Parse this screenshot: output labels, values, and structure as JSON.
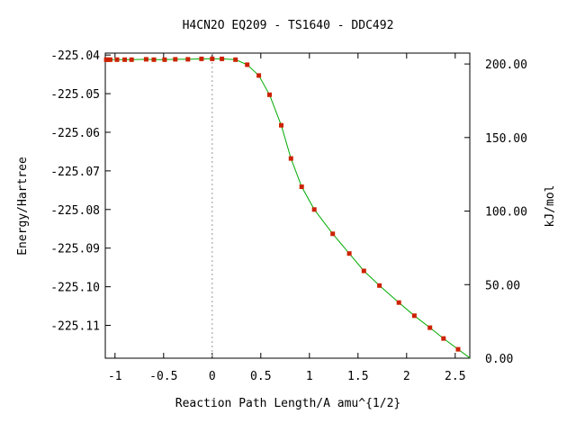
{
  "chart_data": {
    "type": "line",
    "title": "H4CN2O    EQ209 - TS1640 - DDC492",
    "xlabel": "Reaction Path Length/A amu^{1/2}",
    "ylabel": "Energy/Hartree",
    "y2label": "kJ/mol",
    "xlim": [
      -1.1,
      2.65
    ],
    "ylim": [
      -225.1185,
      -225.0395
    ],
    "y2lim": [
      0.0,
      207.4
    ],
    "x_ticks": [
      -1,
      -0.5,
      0,
      0.5,
      1,
      1.5,
      2,
      2.5
    ],
    "x_tick_labels": [
      "-1",
      "-0.5",
      "0",
      "0.5",
      "1",
      "1.5",
      "2",
      "2.5"
    ],
    "y_ticks": [
      -225.04,
      -225.05,
      -225.06,
      -225.07,
      -225.08,
      -225.09,
      -225.1,
      -225.11
    ],
    "y_tick_labels": [
      "-225.04",
      "-225.05",
      "-225.06",
      "-225.07",
      "-225.08",
      "-225.09",
      "-225.10",
      "-225.11"
    ],
    "y2_ticks": [
      0,
      50,
      100,
      150,
      200
    ],
    "y2_tick_labels": [
      "0.00",
      "50.00",
      "100.00",
      "150.00",
      "200.00"
    ],
    "ts_marker_x": 0,
    "grid": false,
    "colors": {
      "line": "#00aa00",
      "marker": "#cc2200",
      "ts_line": "#999999",
      "frame": "#000000"
    },
    "series": [
      {
        "x": [
          -1.09,
          -1.07,
          -1.05,
          -0.98,
          -0.9,
          -0.83,
          -0.68,
          -0.6,
          -0.49,
          -0.38,
          -0.25,
          -0.11,
          0.0,
          0.1,
          0.24,
          0.36,
          0.48,
          0.59,
          0.71,
          0.81,
          0.92,
          1.05,
          1.24,
          1.41,
          1.56,
          1.72,
          1.92,
          2.08,
          2.24,
          2.38,
          2.53
        ],
        "y": [
          -225.0412,
          -225.0412,
          -225.0412,
          -225.0412,
          -225.0412,
          -225.0412,
          -225.0411,
          -225.0412,
          -225.0412,
          -225.0411,
          -225.0411,
          -225.041,
          -225.041,
          -225.041,
          -225.0412,
          -225.0425,
          -225.0453,
          -225.0503,
          -225.0582,
          -225.0668,
          -225.0741,
          -225.08,
          -225.0863,
          -225.0914,
          -225.0959,
          -225.0997,
          -225.1041,
          -225.1075,
          -225.1106,
          -225.1134,
          -225.1162
        ]
      }
    ]
  }
}
